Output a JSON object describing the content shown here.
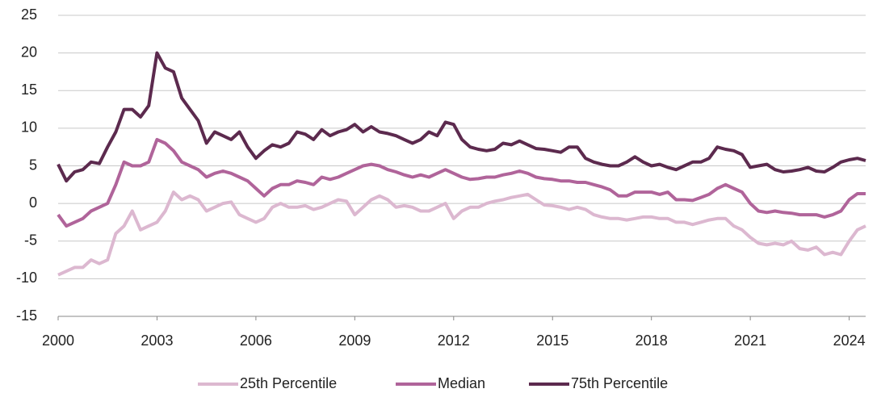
{
  "chart_data": {
    "type": "line",
    "x": [
      2000,
      2000.25,
      2000.5,
      2000.75,
      2001,
      2001.25,
      2001.5,
      2001.75,
      2002,
      2002.25,
      2002.5,
      2002.75,
      2003,
      2003.25,
      2003.5,
      2003.75,
      2004,
      2004.25,
      2004.5,
      2004.75,
      2005,
      2005.25,
      2005.5,
      2005.75,
      2006,
      2006.25,
      2006.5,
      2006.75,
      2007,
      2007.25,
      2007.5,
      2007.75,
      2008,
      2008.25,
      2008.5,
      2008.75,
      2009,
      2009.25,
      2009.5,
      2009.75,
      2010,
      2010.25,
      2010.5,
      2010.75,
      2011,
      2011.25,
      2011.5,
      2011.75,
      2012,
      2012.25,
      2012.5,
      2012.75,
      2013,
      2013.25,
      2013.5,
      2013.75,
      2014,
      2014.25,
      2014.5,
      2014.75,
      2015,
      2015.25,
      2015.5,
      2015.75,
      2016,
      2016.25,
      2016.5,
      2016.75,
      2017,
      2017.25,
      2017.5,
      2017.75,
      2018,
      2018.25,
      2018.5,
      2018.75,
      2019,
      2019.25,
      2019.5,
      2019.75,
      2020,
      2020.25,
      2020.5,
      2020.75,
      2021,
      2021.25,
      2021.5,
      2021.75,
      2022,
      2022.25,
      2022.5,
      2022.75,
      2023,
      2023.25,
      2023.5,
      2023.75,
      2024,
      2024.25,
      2024.5
    ],
    "series": [
      {
        "name": "25th Percentile",
        "color": "#dcb8d0",
        "values": [
          -9.5,
          -9.0,
          -8.5,
          -8.5,
          -7.5,
          -8.0,
          -7.5,
          -4.0,
          -3.0,
          -1.0,
          -3.5,
          -3.0,
          -2.5,
          -1.0,
          1.5,
          0.5,
          1.0,
          0.5,
          -1.0,
          -0.5,
          0,
          0.2,
          -1.5,
          -2.0,
          -2.5,
          -2.0,
          -0.5,
          0,
          -0.5,
          -0.5,
          -0.3,
          -0.8,
          -0.5,
          0,
          0.5,
          0.3,
          -1.5,
          -0.5,
          0.5,
          1.0,
          0.5,
          -0.5,
          -0.3,
          -0.5,
          -1.0,
          -1.0,
          -0.5,
          0,
          -2.0,
          -1.0,
          -0.5,
          -0.5,
          0,
          0.3,
          0.5,
          0.8,
          1.0,
          1.2,
          0.5,
          -0.2,
          -0.3,
          -0.5,
          -0.8,
          -0.5,
          -0.8,
          -1.5,
          -1.8,
          -2.0,
          -2.0,
          -2.2,
          -2.0,
          -1.8,
          -1.8,
          -2.0,
          -2.0,
          -2.5,
          -2.5,
          -2.8,
          -2.5,
          -2.2,
          -2.0,
          -2.0,
          -3.0,
          -3.5,
          -4.5,
          -5.3,
          -5.5,
          -5.3,
          -5.5,
          -5.0,
          -6.0,
          -6.2,
          -5.8,
          -6.8,
          -6.5,
          -6.8,
          -5.0,
          -3.5,
          -3.0
        ]
      },
      {
        "name": "Median",
        "color": "#b0649a",
        "values": [
          -1.5,
          -3.0,
          -2.5,
          -2.0,
          -1.0,
          -0.5,
          0,
          2.5,
          5.5,
          5.0,
          5.0,
          5.5,
          8.5,
          8.0,
          7.0,
          5.5,
          5.0,
          4.5,
          3.5,
          4.0,
          4.3,
          4.0,
          3.5,
          3.0,
          2.0,
          1.0,
          2.0,
          2.5,
          2.5,
          3.0,
          2.8,
          2.5,
          3.5,
          3.2,
          3.5,
          4.0,
          4.5,
          5.0,
          5.2,
          5.0,
          4.5,
          4.2,
          3.8,
          3.5,
          3.8,
          3.5,
          4.0,
          4.5,
          4.0,
          3.5,
          3.2,
          3.3,
          3.5,
          3.5,
          3.8,
          4.0,
          4.3,
          4.0,
          3.5,
          3.3,
          3.2,
          3.0,
          3.0,
          2.8,
          2.8,
          2.5,
          2.2,
          1.8,
          1.0,
          1.0,
          1.5,
          1.5,
          1.5,
          1.2,
          1.5,
          0.5,
          0.5,
          0.4,
          0.8,
          1.2,
          2.0,
          2.5,
          2.0,
          1.5,
          0,
          -1.0,
          -1.2,
          -1.0,
          -1.2,
          -1.3,
          -1.5,
          -1.5,
          -1.5,
          -1.8,
          -1.5,
          -1.0,
          0.5,
          1.3,
          1.3
        ]
      },
      {
        "name": "75th Percentile",
        "color": "#5c2a4e",
        "values": [
          5.2,
          3.0,
          4.2,
          4.5,
          5.5,
          5.3,
          7.5,
          9.5,
          12.5,
          12.5,
          11.5,
          13.0,
          20.0,
          18.0,
          17.5,
          14.0,
          12.5,
          11.0,
          8.0,
          9.5,
          9.0,
          8.5,
          9.5,
          7.5,
          6.0,
          7.0,
          7.8,
          7.5,
          8.0,
          9.5,
          9.2,
          8.5,
          9.8,
          9.0,
          9.5,
          9.8,
          10.5,
          9.5,
          10.2,
          9.5,
          9.3,
          9.0,
          8.5,
          8.0,
          8.5,
          9.5,
          9.0,
          10.8,
          10.5,
          8.5,
          7.5,
          7.2,
          7.0,
          7.2,
          8.0,
          7.8,
          8.3,
          7.8,
          7.3,
          7.2,
          7.0,
          6.8,
          7.5,
          7.5,
          6.0,
          5.5,
          5.2,
          5.0,
          5.0,
          5.5,
          6.2,
          5.5,
          5.0,
          5.2,
          4.8,
          4.5,
          5.0,
          5.5,
          5.5,
          6.0,
          7.5,
          7.2,
          7.0,
          6.5,
          4.8,
          5.0,
          5.2,
          4.5,
          4.2,
          4.3,
          4.5,
          4.8,
          4.3,
          4.2,
          4.8,
          5.5,
          5.8,
          6.0,
          5.7
        ]
      }
    ],
    "xlim": [
      2000,
      2024.5
    ],
    "xticks": [
      2000,
      2003,
      2006,
      2009,
      2012,
      2015,
      2018,
      2021,
      2024
    ],
    "ylim": [
      -15,
      25
    ],
    "yticks": [
      -15,
      -10,
      -5,
      0,
      5,
      10,
      15,
      20,
      25
    ],
    "grid": true,
    "legend": "bottom"
  }
}
